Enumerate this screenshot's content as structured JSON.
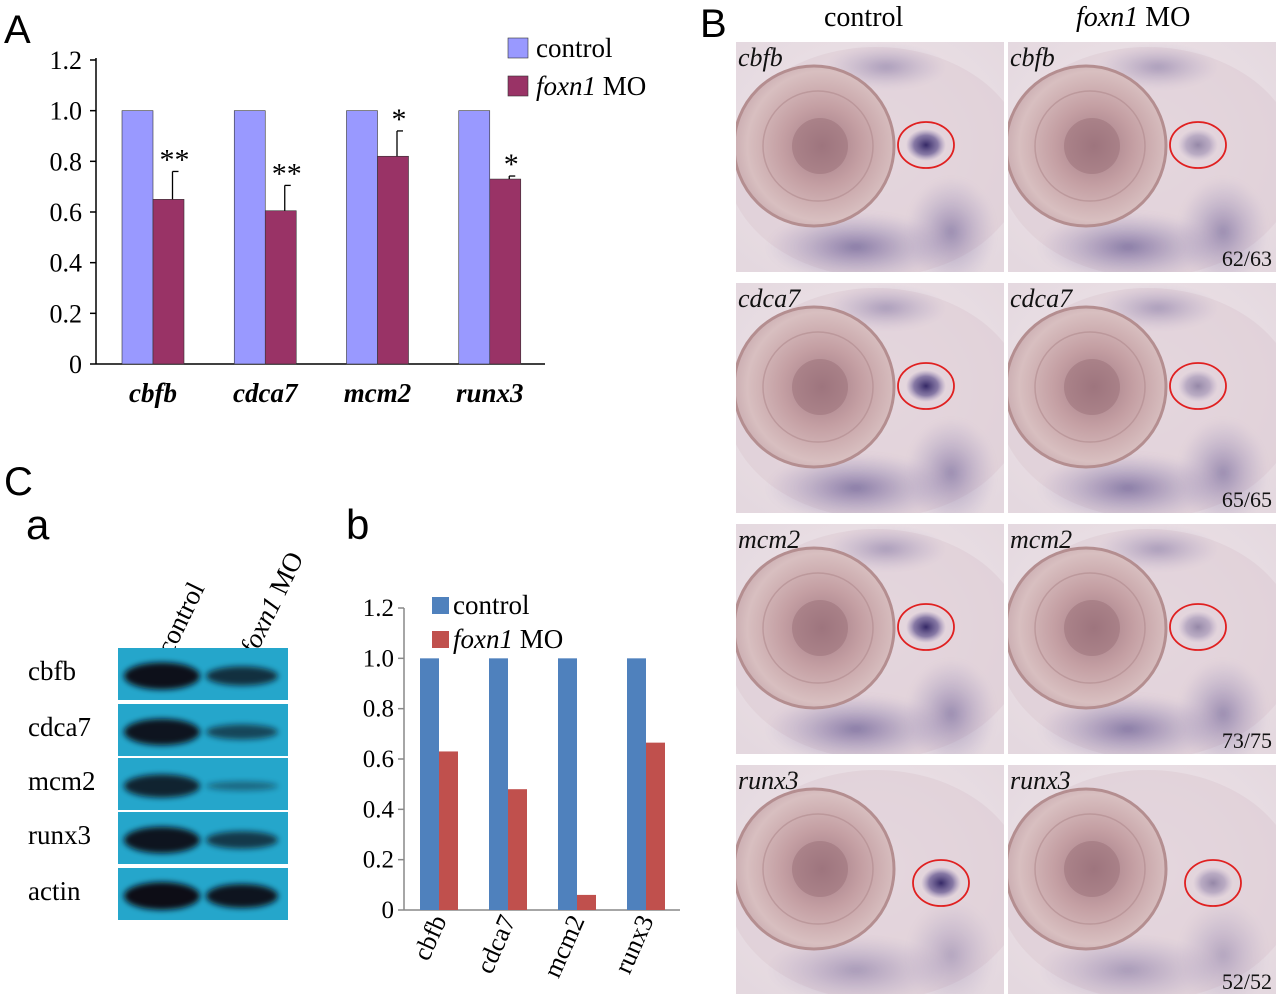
{
  "panel_labels": {
    "A": "A",
    "B": "B",
    "C": "C",
    "a": "a",
    "b": "b"
  },
  "chart_data": [
    {
      "id": "A",
      "type": "bar",
      "categories": [
        "cbfb",
        "cdca7",
        "mcm2",
        "runx3"
      ],
      "series": [
        {
          "name": "control",
          "values": [
            1.0,
            1.0,
            1.0,
            1.0
          ],
          "color": "#9999FF"
        },
        {
          "name": "MO",
          "name_italic": "foxn1",
          "values": [
            0.65,
            0.605,
            0.82,
            0.73
          ],
          "error": [
            0.11,
            0.1,
            0.1,
            0.012
          ],
          "color": "#993366"
        }
      ],
      "significance": [
        "**",
        "**",
        "*",
        "*"
      ],
      "ylim": [
        0,
        1.2
      ],
      "yticks": [
        "0",
        "0.2",
        "0.4",
        "0.6",
        "0.8",
        "1.0",
        "1.2"
      ],
      "legend": "top-right",
      "grid": false
    },
    {
      "id": "Cb",
      "type": "bar",
      "categories": [
        "cbfb",
        "cdca7",
        "mcm2",
        "runx3"
      ],
      "series": [
        {
          "name": "control",
          "values": [
            1.0,
            1.0,
            1.0,
            1.0
          ],
          "color": "#4F81BD"
        },
        {
          "name": "MO",
          "name_italic": "foxn1",
          "values": [
            0.63,
            0.48,
            0.06,
            0.665
          ],
          "color": "#C0504D"
        }
      ],
      "ylim": [
        0,
        1.2
      ],
      "yticks": [
        "0",
        "0.2",
        "0.4",
        "0.6",
        "0.8",
        "1.0",
        "1.2"
      ],
      "legend": "top",
      "grid": false
    }
  ],
  "ish": {
    "col_headers": {
      "control": "control",
      "mo_italic": "foxn1",
      "mo_suffix": " MO"
    },
    "rows": [
      {
        "gene": "cbfb",
        "count": "62/63"
      },
      {
        "gene": "cdca7",
        "count": "65/65"
      },
      {
        "gene": "mcm2",
        "count": "73/75"
      },
      {
        "gene": "runx3",
        "count": "52/52"
      }
    ]
  },
  "blot": {
    "lane_labels": {
      "control": "control",
      "mo_italic": "foxn1",
      "mo_suffix": " MO"
    },
    "rows": [
      {
        "label": "cbfb",
        "control": 0.95,
        "mo": 0.7
      },
      {
        "label": "cdca7",
        "control": 0.9,
        "mo": 0.45
      },
      {
        "label": "mcm2",
        "control": 0.7,
        "mo": 0.08
      },
      {
        "label": "runx3",
        "control": 0.9,
        "mo": 0.6
      },
      {
        "label": "actin",
        "control": 1.0,
        "mo": 1.0
      }
    ]
  }
}
